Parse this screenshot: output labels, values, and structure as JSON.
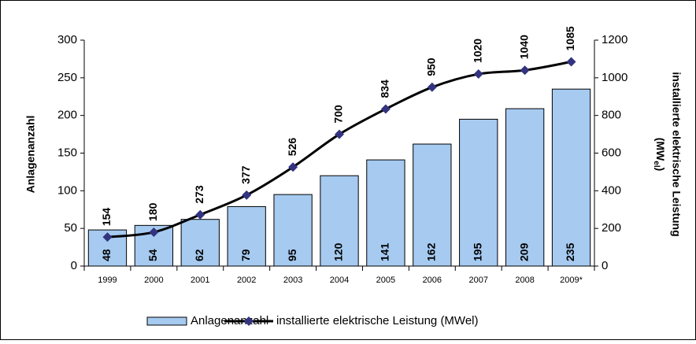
{
  "chart_data": {
    "type": "bar_line",
    "y_label": "Anlagenanzahl",
    "y2_label": "installierte elektrische Leistung",
    "y2_label_unit": {
      "open": "(MW",
      "sub": "el",
      "close": ")"
    },
    "categories": [
      "1999",
      "2000",
      "2001",
      "2002",
      "2003",
      "2004",
      "2005",
      "2006",
      "2007",
      "2008",
      "2009*"
    ],
    "series": [
      {
        "name": "Anlagenanzahl",
        "type": "bar",
        "color": "#a6caf0",
        "values": [
          48,
          54,
          62,
          79,
          95,
          120,
          141,
          162,
          195,
          209,
          235
        ]
      },
      {
        "name": "installierte elektrische Leistung (MWel)",
        "type": "line",
        "axis": "y2",
        "color": "#000000",
        "marker_color": "#333380",
        "values": [
          154,
          180,
          273,
          377,
          526,
          700,
          834,
          950,
          1020,
          1040,
          1085
        ]
      }
    ],
    "ylim": [
      0,
      300
    ],
    "yticks": [
      0,
      50,
      100,
      150,
      200,
      250,
      300
    ],
    "y2lim": [
      0,
      1200
    ],
    "y2ticks": [
      0,
      200,
      400,
      600,
      800,
      1000,
      1200
    ],
    "legend": "bottom"
  }
}
